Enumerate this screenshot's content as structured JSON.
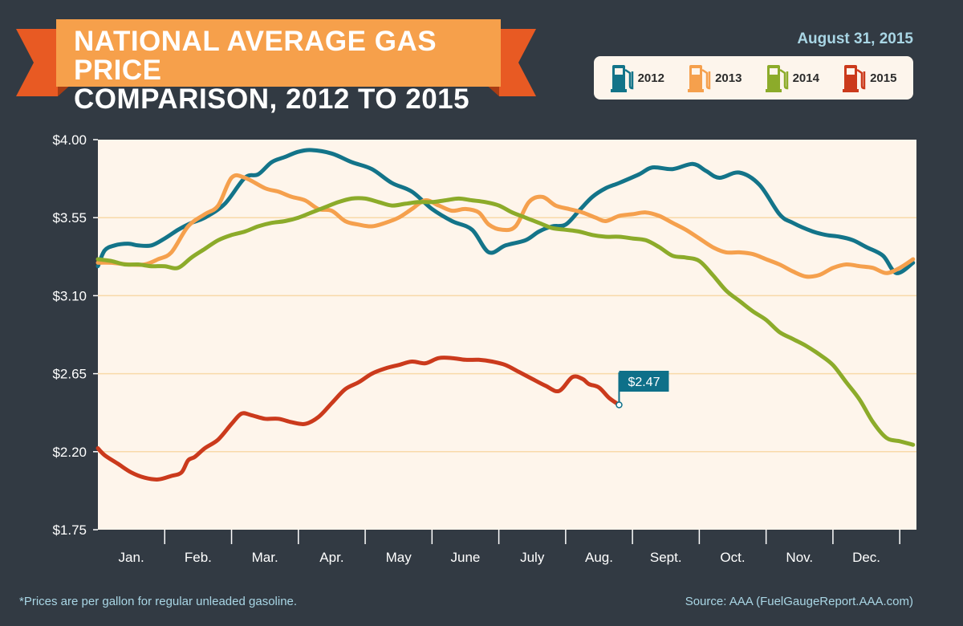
{
  "header": {
    "title_line1": "NATIONAL AVERAGE GAS PRICE",
    "title_line2": "COMPARISON, 2012 TO 2015",
    "date": "August 31, 2015"
  },
  "colors": {
    "background": "#323a43",
    "banner_main": "#f6a04b",
    "banner_fold": "#e85a23",
    "plot_bg": "#fef5eb",
    "gridline": "#f8d9a9",
    "callout": "#0e7089",
    "footer_text": "#a9d6e5"
  },
  "legend": {
    "items": [
      {
        "label": "2012",
        "color": "#137489",
        "icon": "gas-pump-icon"
      },
      {
        "label": "2013",
        "color": "#f5a04d",
        "icon": "gas-pump-icon"
      },
      {
        "label": "2014",
        "color": "#8cab2a",
        "icon": "gas-pump-icon"
      },
      {
        "label": "2015",
        "color": "#cb3a1c",
        "icon": "gas-pump-icon"
      }
    ]
  },
  "chart_data": {
    "type": "line",
    "x_unit": "month of year (1.0 = start of Jan.)",
    "ylim": [
      1.75,
      4.0
    ],
    "yticks": [
      "$1.75",
      "$2.20",
      "$2.65",
      "$3.10",
      "$3.55",
      "$4.00"
    ],
    "ytick_values": [
      1.75,
      2.2,
      2.65,
      3.1,
      3.55,
      4.0
    ],
    "categories": [
      "Jan.",
      "Feb.",
      "Mar.",
      "Apr.",
      "May",
      "June",
      "July",
      "Aug.",
      "Sept.",
      "Oct.",
      "Nov.",
      "Dec."
    ],
    "grid": "horizontal",
    "legend_position": "top-right",
    "series": [
      {
        "name": "2012",
        "color": "#137489",
        "x": [
          1.0,
          1.1,
          1.25,
          1.45,
          1.6,
          1.8,
          2.0,
          2.2,
          2.4,
          2.6,
          2.9,
          3.2,
          3.4,
          3.6,
          3.8,
          4.0,
          4.2,
          4.5,
          4.8,
          5.1,
          5.4,
          5.7,
          6.0,
          6.3,
          6.6,
          6.85,
          7.1,
          7.4,
          7.6,
          7.8,
          8.0,
          8.2,
          8.4,
          8.6,
          8.8,
          9.1,
          9.3,
          9.6,
          9.9,
          10.1,
          10.3,
          10.6,
          10.9,
          11.2,
          11.4,
          11.7,
          11.9,
          12.1,
          12.3,
          12.5,
          12.75,
          12.95,
          13.2
        ],
        "y": [
          3.27,
          3.36,
          3.39,
          3.4,
          3.39,
          3.39,
          3.43,
          3.48,
          3.52,
          3.55,
          3.63,
          3.78,
          3.8,
          3.87,
          3.9,
          3.93,
          3.94,
          3.92,
          3.87,
          3.83,
          3.75,
          3.7,
          3.6,
          3.53,
          3.48,
          3.35,
          3.39,
          3.42,
          3.47,
          3.5,
          3.51,
          3.59,
          3.67,
          3.72,
          3.75,
          3.8,
          3.84,
          3.83,
          3.86,
          3.82,
          3.78,
          3.81,
          3.74,
          3.57,
          3.52,
          3.47,
          3.45,
          3.44,
          3.42,
          3.38,
          3.33,
          3.23,
          3.29
        ]
      },
      {
        "name": "2013",
        "color": "#f5a04d",
        "x": [
          1.0,
          1.2,
          1.45,
          1.7,
          1.9,
          2.1,
          2.35,
          2.6,
          2.8,
          3.0,
          3.2,
          3.5,
          3.7,
          3.9,
          4.1,
          4.3,
          4.5,
          4.7,
          4.9,
          5.1,
          5.3,
          5.5,
          5.7,
          5.9,
          6.1,
          6.3,
          6.5,
          6.7,
          6.85,
          7.05,
          7.25,
          7.45,
          7.65,
          7.85,
          8.05,
          8.25,
          8.45,
          8.6,
          8.8,
          9.0,
          9.2,
          9.4,
          9.6,
          9.8,
          10.0,
          10.2,
          10.4,
          10.6,
          10.8,
          11.0,
          11.2,
          11.4,
          11.6,
          11.8,
          12.0,
          12.2,
          12.4,
          12.6,
          12.8,
          13.0,
          13.2
        ],
        "y": [
          3.29,
          3.29,
          3.28,
          3.28,
          3.31,
          3.35,
          3.5,
          3.57,
          3.62,
          3.78,
          3.78,
          3.72,
          3.7,
          3.67,
          3.65,
          3.6,
          3.59,
          3.53,
          3.51,
          3.5,
          3.52,
          3.55,
          3.6,
          3.65,
          3.62,
          3.59,
          3.6,
          3.58,
          3.51,
          3.48,
          3.5,
          3.64,
          3.67,
          3.62,
          3.6,
          3.58,
          3.55,
          3.53,
          3.56,
          3.57,
          3.58,
          3.56,
          3.52,
          3.48,
          3.43,
          3.38,
          3.35,
          3.35,
          3.34,
          3.31,
          3.28,
          3.24,
          3.21,
          3.22,
          3.26,
          3.28,
          3.27,
          3.26,
          3.23,
          3.26,
          3.31
        ]
      },
      {
        "name": "2014",
        "color": "#8cab2a",
        "x": [
          1.0,
          1.2,
          1.4,
          1.6,
          1.8,
          2.0,
          2.2,
          2.4,
          2.6,
          2.8,
          3.0,
          3.2,
          3.4,
          3.6,
          3.8,
          4.0,
          4.2,
          4.4,
          4.6,
          4.8,
          5.0,
          5.2,
          5.4,
          5.6,
          5.8,
          6.0,
          6.2,
          6.4,
          6.6,
          6.8,
          7.0,
          7.2,
          7.4,
          7.6,
          7.8,
          8.0,
          8.2,
          8.4,
          8.6,
          8.8,
          9.0,
          9.2,
          9.4,
          9.6,
          9.8,
          10.0,
          10.2,
          10.4,
          10.6,
          10.8,
          11.0,
          11.2,
          11.4,
          11.6,
          11.8,
          12.0,
          12.2,
          12.4,
          12.6,
          12.8,
          13.0,
          13.2
        ],
        "y": [
          3.31,
          3.3,
          3.28,
          3.28,
          3.27,
          3.27,
          3.26,
          3.32,
          3.37,
          3.42,
          3.45,
          3.47,
          3.5,
          3.52,
          3.53,
          3.55,
          3.58,
          3.61,
          3.64,
          3.66,
          3.66,
          3.64,
          3.62,
          3.63,
          3.64,
          3.64,
          3.65,
          3.66,
          3.65,
          3.64,
          3.62,
          3.58,
          3.55,
          3.52,
          3.49,
          3.48,
          3.47,
          3.45,
          3.44,
          3.44,
          3.43,
          3.42,
          3.38,
          3.33,
          3.32,
          3.3,
          3.22,
          3.13,
          3.07,
          3.01,
          2.96,
          2.89,
          2.85,
          2.81,
          2.76,
          2.7,
          2.6,
          2.5,
          2.37,
          2.28,
          2.26,
          2.24
        ]
      },
      {
        "name": "2015",
        "color": "#cb3a1c",
        "x": [
          1.0,
          1.1,
          1.3,
          1.5,
          1.7,
          1.9,
          2.1,
          2.25,
          2.35,
          2.45,
          2.6,
          2.8,
          3.0,
          3.15,
          3.3,
          3.5,
          3.7,
          3.9,
          4.1,
          4.3,
          4.5,
          4.7,
          4.9,
          5.1,
          5.3,
          5.5,
          5.7,
          5.9,
          6.1,
          6.3,
          6.5,
          6.7,
          6.9,
          7.1,
          7.3,
          7.5,
          7.7,
          7.9,
          8.1,
          8.25,
          8.35,
          8.5,
          8.65,
          8.8
        ],
        "y": [
          2.22,
          2.18,
          2.13,
          2.08,
          2.05,
          2.04,
          2.06,
          2.08,
          2.15,
          2.17,
          2.22,
          2.27,
          2.36,
          2.42,
          2.41,
          2.39,
          2.39,
          2.37,
          2.36,
          2.4,
          2.48,
          2.56,
          2.6,
          2.65,
          2.68,
          2.7,
          2.72,
          2.71,
          2.74,
          2.74,
          2.73,
          2.73,
          2.72,
          2.7,
          2.66,
          2.62,
          2.58,
          2.55,
          2.63,
          2.62,
          2.59,
          2.57,
          2.51,
          2.47
        ]
      }
    ],
    "annotation": {
      "label": "$2.47",
      "series": "2015",
      "x": 8.8,
      "y": 2.47
    }
  },
  "footer": {
    "footnote": "*Prices are per gallon for regular unleaded gasoline.",
    "source": "Source: AAA (FuelGaugeReport.AAA.com)"
  }
}
